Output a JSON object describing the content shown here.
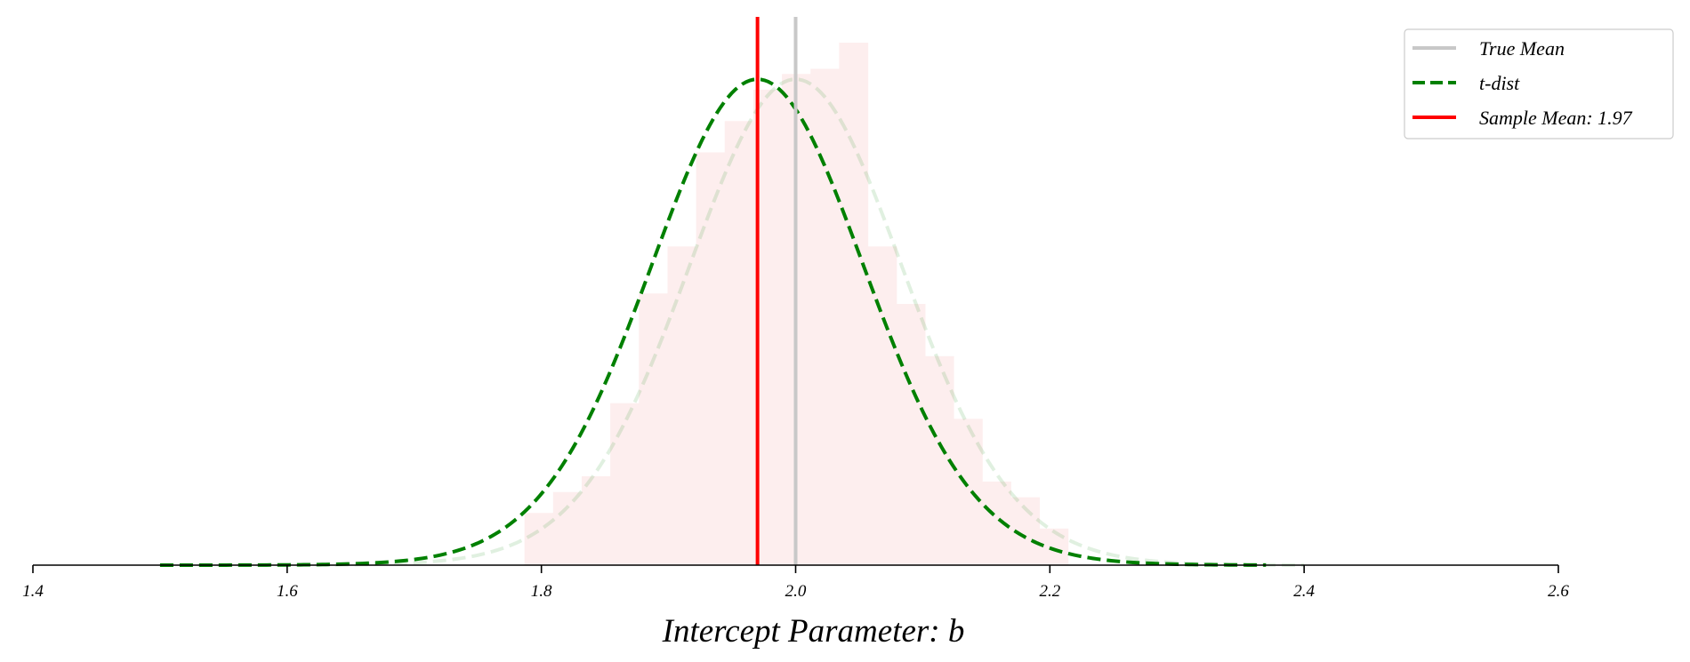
{
  "chart_data": {
    "type": "histogram",
    "xlabel": "Intercept Parameter: b",
    "xlim": [
      1.4,
      2.6
    ],
    "x_ticks": [
      "1.4",
      "1.6",
      "1.8",
      "2.0",
      "2.2",
      "2.4",
      "2.6"
    ],
    "y_axis_visible": false,
    "grid": false,
    "legend_position": "top-right",
    "histogram": {
      "color": "#fdeeee",
      "bin_width": 0.0225,
      "bins": [
        {
          "x0": 1.7867,
          "height": 0.1
        },
        {
          "x0": 1.8092,
          "height": 0.14
        },
        {
          "x0": 1.8317,
          "height": 0.17
        },
        {
          "x0": 1.8542,
          "height": 0.31
        },
        {
          "x0": 1.8767,
          "height": 0.52
        },
        {
          "x0": 1.8992,
          "height": 0.61
        },
        {
          "x0": 1.9217,
          "height": 0.79
        },
        {
          "x0": 1.9442,
          "height": 0.85
        },
        {
          "x0": 1.9667,
          "height": 0.91
        },
        {
          "x0": 1.9892,
          "height": 0.94
        },
        {
          "x0": 2.0117,
          "height": 0.95
        },
        {
          "x0": 2.0342,
          "height": 1.0
        },
        {
          "x0": 2.0567,
          "height": 0.61
        },
        {
          "x0": 2.0792,
          "height": 0.5
        },
        {
          "x0": 2.1017,
          "height": 0.4
        },
        {
          "x0": 2.1242,
          "height": 0.28
        },
        {
          "x0": 2.1467,
          "height": 0.16
        },
        {
          "x0": 2.1692,
          "height": 0.13
        },
        {
          "x0": 2.1917,
          "height": 0.07
        }
      ]
    },
    "curves": [
      {
        "name": "t-dist",
        "role": "legend",
        "color": "#008000",
        "dash": "dashed",
        "opacity": 1.0,
        "mean": 1.97,
        "sd": 0.0855,
        "df": 30,
        "x_range": [
          1.5,
          2.37
        ],
        "peak_height": 0.93
      },
      {
        "name": "",
        "role": "faded",
        "color": "#008000",
        "dash": "dashed",
        "opacity": 0.12,
        "mean": 2.0,
        "sd": 0.0855,
        "df": 30,
        "x_range": [
          1.53,
          2.4
        ],
        "peak_height": 0.93
      }
    ],
    "vlines": [
      {
        "name": "True Mean",
        "x": 2.0,
        "color": "#c8c8c8"
      },
      {
        "name": "Sample Mean: 1.97",
        "x": 1.97,
        "color": "#ff0000"
      }
    ],
    "legend": [
      {
        "label": "True Mean",
        "color": "#c8c8c8",
        "style": "solid"
      },
      {
        "label": "t-dist",
        "color": "#008000",
        "style": "dashed"
      },
      {
        "label": "Sample Mean: 1.97",
        "color": "#ff0000",
        "style": "solid"
      }
    ]
  }
}
